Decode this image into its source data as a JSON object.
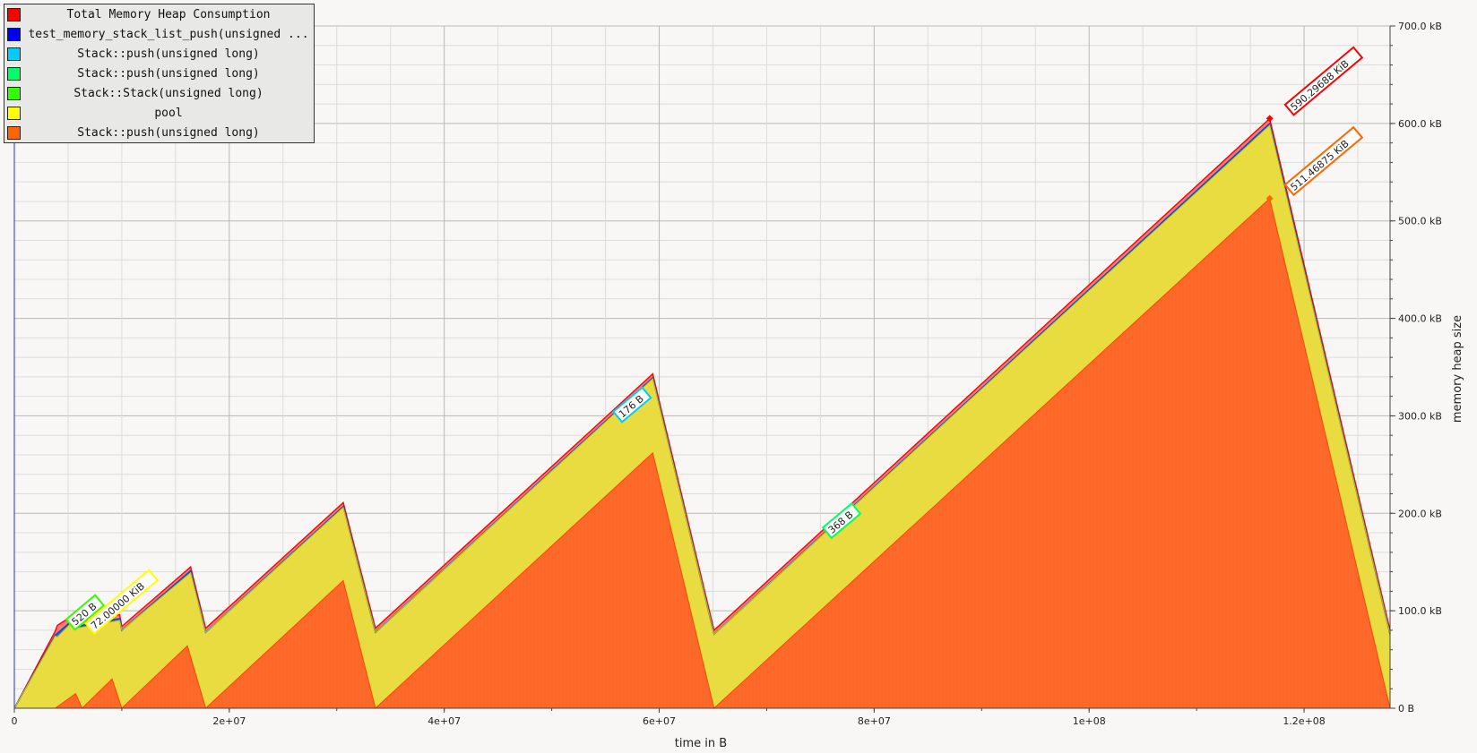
{
  "chart_data": {
    "type": "area",
    "title": "",
    "xlabel": "time in B",
    "ylabel": "memory heap size",
    "xlim": [
      0,
      128000000
    ],
    "ylim": [
      0,
      700
    ],
    "y_unit": "kB",
    "x_ticks": [
      {
        "value": 0,
        "label": "0"
      },
      {
        "value": 20000000,
        "label": "2e+07"
      },
      {
        "value": 40000000,
        "label": "4e+07"
      },
      {
        "value": 60000000,
        "label": "6e+07"
      },
      {
        "value": 80000000,
        "label": "8e+07"
      },
      {
        "value": 100000000,
        "label": "1e+08"
      },
      {
        "value": 120000000,
        "label": "1.2e+08"
      }
    ],
    "y_ticks": [
      {
        "value": 0,
        "label": "0 B"
      },
      {
        "value": 100,
        "label": "100.0 kB"
      },
      {
        "value": 200,
        "label": "200.0 kB"
      },
      {
        "value": 300,
        "label": "300.0 kB"
      },
      {
        "value": 400,
        "label": "400.0 kB"
      },
      {
        "value": 500,
        "label": "500.0 kB"
      },
      {
        "value": 600,
        "label": "600.0 kB"
      },
      {
        "value": 700,
        "label": "700.0 kB"
      }
    ],
    "grid": true,
    "legend_position": "top-left",
    "series": [
      {
        "name": "Total Memory Heap Consumption",
        "color": "#ff0000",
        "x": [
          0,
          3800000,
          4000000,
          5700000,
          5800000,
          9800000,
          10000000,
          16400000,
          17800000,
          30600000,
          33600000,
          59400000,
          65100000,
          116800000,
          128000000
        ],
        "y": [
          0,
          79,
          85,
          97,
          88,
          96,
          84,
          145,
          82,
          211,
          82,
          343,
          80,
          605,
          80
        ]
      },
      {
        "name": "test_memory_stack_list_push(unsigned ...",
        "color": "#0000ff",
        "x": [
          0,
          3800000,
          5700000,
          5800000,
          9800000,
          10000000,
          16400000,
          17800000,
          30600000,
          33600000,
          59400000,
          65100000,
          116800000,
          128000000
        ],
        "y": [
          0,
          75,
          93,
          84,
          92,
          80,
          141,
          78,
          207,
          78,
          339,
          76,
          600,
          76
        ]
      },
      {
        "name": "Stack::push(unsigned long)",
        "color": "#00ccff",
        "x": [],
        "y": []
      },
      {
        "name": "Stack::push(unsigned long)",
        "color": "#00ff66",
        "x": [],
        "y": []
      },
      {
        "name": "Stack::Stack(unsigned long)",
        "color": "#33ff00",
        "x": [],
        "y": []
      },
      {
        "name": "pool",
        "color": "#ffff00",
        "x": [
          0,
          3800000,
          4000000,
          5700000,
          5800000,
          9800000,
          10000000,
          16400000,
          17800000,
          30600000,
          33600000,
          59400000,
          65100000,
          116800000,
          128000000
        ],
        "y": [
          0,
          74,
          73,
          92,
          82,
          90,
          80,
          139,
          78,
          206,
          78,
          338,
          76,
          598,
          76
        ]
      },
      {
        "name": "Stack::push(unsigned long)",
        "color": "#ff6600",
        "x": [
          0,
          3800000,
          5700000,
          6300000,
          9100000,
          10000000,
          16100000,
          17800000,
          30600000,
          33600000,
          59400000,
          65100000,
          116800000,
          128000000
        ],
        "y": [
          0,
          0,
          15,
          0,
          30,
          0,
          64,
          0,
          131,
          0,
          262,
          0,
          523,
          0
        ]
      }
    ],
    "annotations": [
      {
        "text": "520 B",
        "color": "#33ff00",
        "x": 5600000,
        "y": 84
      },
      {
        "text": "72.00000 KiB",
        "color": "#ffff00",
        "x": 7400000,
        "y": 80
      },
      {
        "text": "176 B",
        "color": "#00ccff",
        "x": 56500000,
        "y": 297
      },
      {
        "text": "368 B",
        "color": "#00ff66",
        "x": 76000000,
        "y": 178
      },
      {
        "text": "590.29688 KiB",
        "color": "#ff0000",
        "x": 119000000,
        "y": 612
      },
      {
        "text": "511.46875 KiB",
        "color": "#ff6600",
        "x": 119000000,
        "y": 530
      }
    ],
    "peaks": [
      {
        "series": "Total Memory Heap Consumption",
        "x": 116800000,
        "y": 605,
        "color": "#ff0000"
      },
      {
        "series": "Stack::push(unsigned long)",
        "x": 116800000,
        "y": 523,
        "color": "#ff6600"
      }
    ]
  }
}
